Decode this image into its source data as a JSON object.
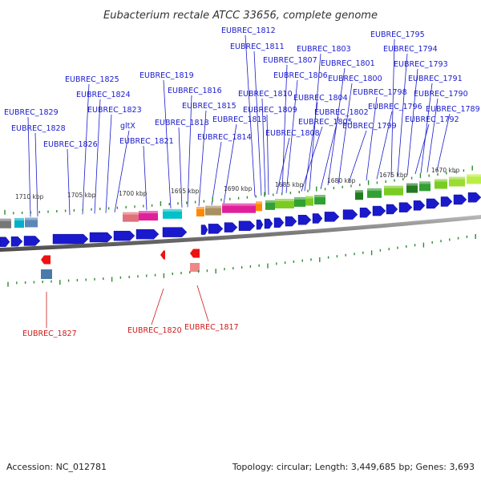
{
  "title": "Eubacterium rectale ATCC 33656, complete genome",
  "footer": {
    "accession": "Accession: NC_012781",
    "topology": "Topology: circular; Length: 3,449,685 bp; Genes: 3,693"
  },
  "scale_labels": [
    "1710 kbp",
    "1705 kbp",
    "1700 kbp",
    "1695 kbp",
    "1690 kbp",
    "1685 kbp",
    "1680 kbp",
    "1675 kbp",
    "1670 kbp"
  ],
  "forward_labels": [
    "EUBREC_1829",
    "EUBREC_1828",
    "EUBREC_1826",
    "EUBREC_1825",
    "EUBREC_1824",
    "EUBREC_1823",
    "gltX",
    "EUBREC_1821",
    "EUBREC_1819",
    "EUBREC_1818",
    "EUBREC_1816",
    "EUBREC_1815",
    "EUBREC_1814",
    "EUBREC_1813",
    "EUBREC_1812",
    "EUBREC_1811",
    "EUBREC_1810",
    "EUBREC_1809",
    "EUBREC_1808",
    "EUBREC_1807",
    "EUBREC_1806",
    "EUBREC_1805",
    "EUBREC_1804",
    "EUBREC_1803",
    "EUBREC_1802",
    "EUBREC_1801",
    "EUBREC_1800",
    "EUBREC_1799",
    "EUBREC_1798",
    "EUBREC_1796",
    "EUBREC_1795",
    "EUBREC_1794",
    "EUBREC_1793",
    "EUBREC_1792",
    "EUBREC_1791",
    "EUBREC_1790",
    "EUBREC_1789"
  ],
  "reverse_labels": [
    "EUBREC_1827",
    "EUBREC_1820",
    "EUBREC_1817"
  ],
  "colors": {
    "forward": "#1a1acc",
    "reverse": "#cc1a1a",
    "backbone": "#7a7a7a",
    "tick": "#2e8b2e"
  }
}
